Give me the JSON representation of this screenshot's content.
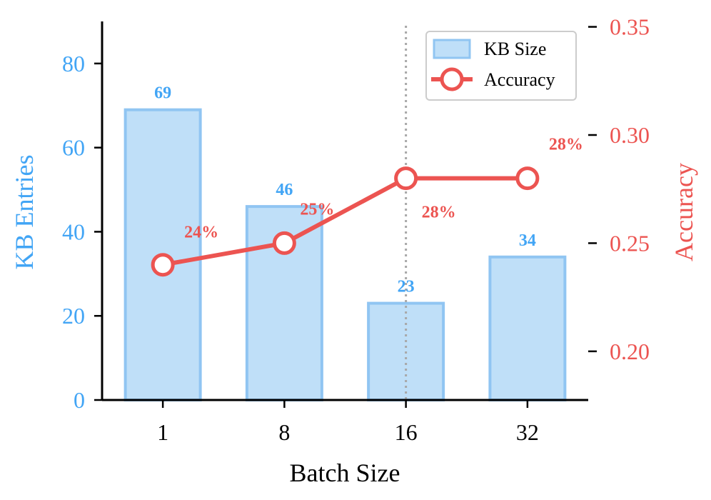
{
  "chart_data": {
    "type": "bar",
    "categories": [
      "1",
      "8",
      "16",
      "32"
    ],
    "xlabel": "Batch Size",
    "ylabel_left": "KB Entries",
    "ylabel_right": "Accuracy",
    "ylim_left": [
      0,
      90
    ],
    "yticks_left": [
      "0",
      "20",
      "40",
      "60",
      "80"
    ],
    "ylim_right": [
      0.1775,
      0.3525
    ],
    "yticks_right": [
      "0.20",
      "0.25",
      "0.30",
      "0.35"
    ],
    "series": [
      {
        "name": "KB Size",
        "kind": "bar",
        "axis": "left",
        "values": [
          69,
          46,
          23,
          34
        ],
        "labels": [
          "69",
          "46",
          "23",
          "34"
        ]
      },
      {
        "name": "Accuracy",
        "kind": "line",
        "axis": "right",
        "values": [
          0.24,
          0.25,
          0.28,
          0.28
        ],
        "labels": [
          "24%",
          "25%",
          "28%",
          "28%"
        ]
      }
    ],
    "vline_at_category": "16",
    "legend_position": "top-right",
    "grid": false,
    "colors": {
      "bar_fill": "#bfdff8",
      "bar_edge": "#90c5f2",
      "bar_label": "#42a5f5",
      "left_axis": "#42a5f5",
      "line": "#ec5451",
      "right_axis": "#ec5451",
      "vline": "#a8a8a8",
      "spine": "#000000"
    }
  }
}
